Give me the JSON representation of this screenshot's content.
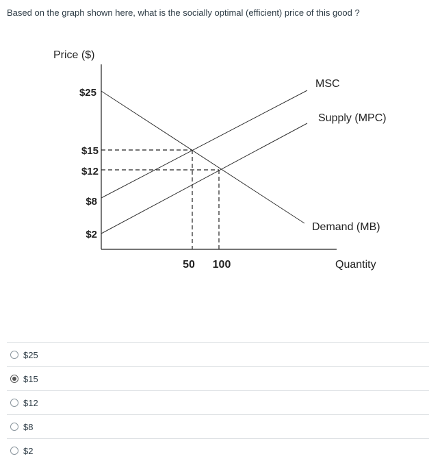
{
  "question": {
    "text": "Based on the graph shown here, what is the socially optimal (efficient) price of this good ?"
  },
  "chart_data": {
    "type": "line",
    "ylabel": "Price ($)",
    "xlabel": "Quantity",
    "y_ticks": [
      "$25",
      "$15",
      "$12",
      "$8",
      "$2"
    ],
    "x_ticks": [
      "50",
      "100"
    ],
    "curve_labels": {
      "msc": "MSC",
      "supply": "Supply (MPC)",
      "demand": "Demand (MB)"
    }
  },
  "answers": {
    "options": [
      {
        "label": "$25",
        "selected": false
      },
      {
        "label": "$15",
        "selected": true
      },
      {
        "label": "$12",
        "selected": false
      },
      {
        "label": "$8",
        "selected": false
      },
      {
        "label": "$2",
        "selected": false
      }
    ]
  }
}
